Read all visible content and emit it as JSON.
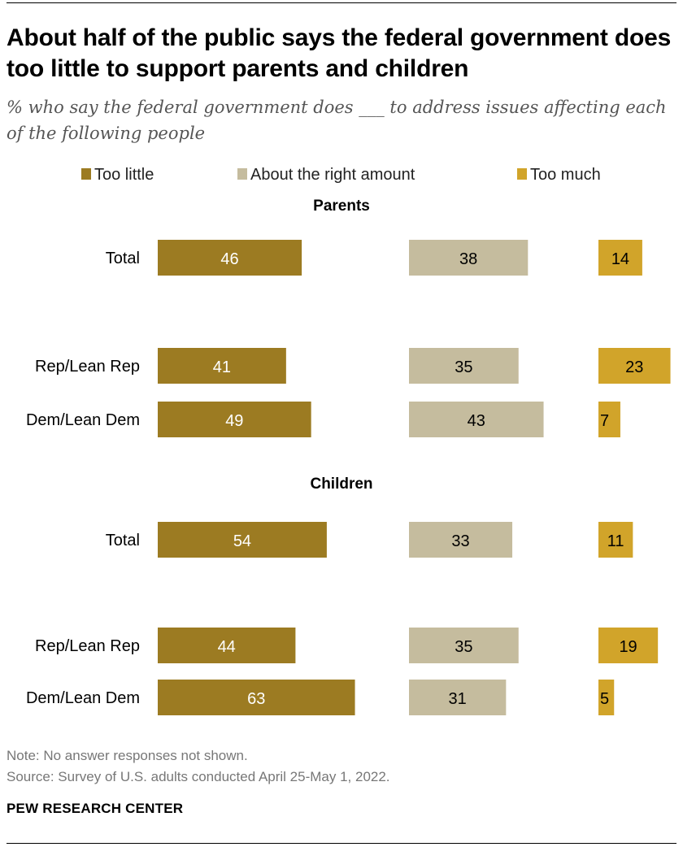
{
  "title": "About half of the public says the federal government does too little to support parents and children",
  "subtitle": "% who say the federal government does ___ to address issues affecting each of the following people",
  "notes": {
    "note": "Note: No answer responses not shown.",
    "source": "Source: Survey of U.S. adults conducted April 25-May 1, 2022."
  },
  "brand": "PEW RESEARCH CENTER",
  "colors": {
    "too_little": "#9c7b22",
    "right_amount": "#c5bc9e",
    "too_much": "#d1a42a"
  },
  "chart_data": {
    "type": "bar",
    "orientation": "horizontal",
    "legend": [
      "Too little",
      "About the right amount",
      "Too much"
    ],
    "legend_placement": "top",
    "panels": [
      {
        "heading": "Parents",
        "rows": [
          {
            "label": "Total",
            "too_little": 46,
            "right_amount": 38,
            "too_much": 14
          },
          {
            "label": "Rep/Lean Rep",
            "too_little": 41,
            "right_amount": 35,
            "too_much": 23
          },
          {
            "label": "Dem/Lean Dem",
            "too_little": 49,
            "right_amount": 43,
            "too_much": 7
          }
        ]
      },
      {
        "heading": "Children",
        "rows": [
          {
            "label": "Total",
            "too_little": 54,
            "right_amount": 33,
            "too_much": 11
          },
          {
            "label": "Rep/Lean Rep",
            "too_little": 44,
            "right_amount": 35,
            "too_much": 19
          },
          {
            "label": "Dem/Lean Dem",
            "too_little": 63,
            "right_amount": 31,
            "too_much": 5
          }
        ]
      }
    ]
  }
}
